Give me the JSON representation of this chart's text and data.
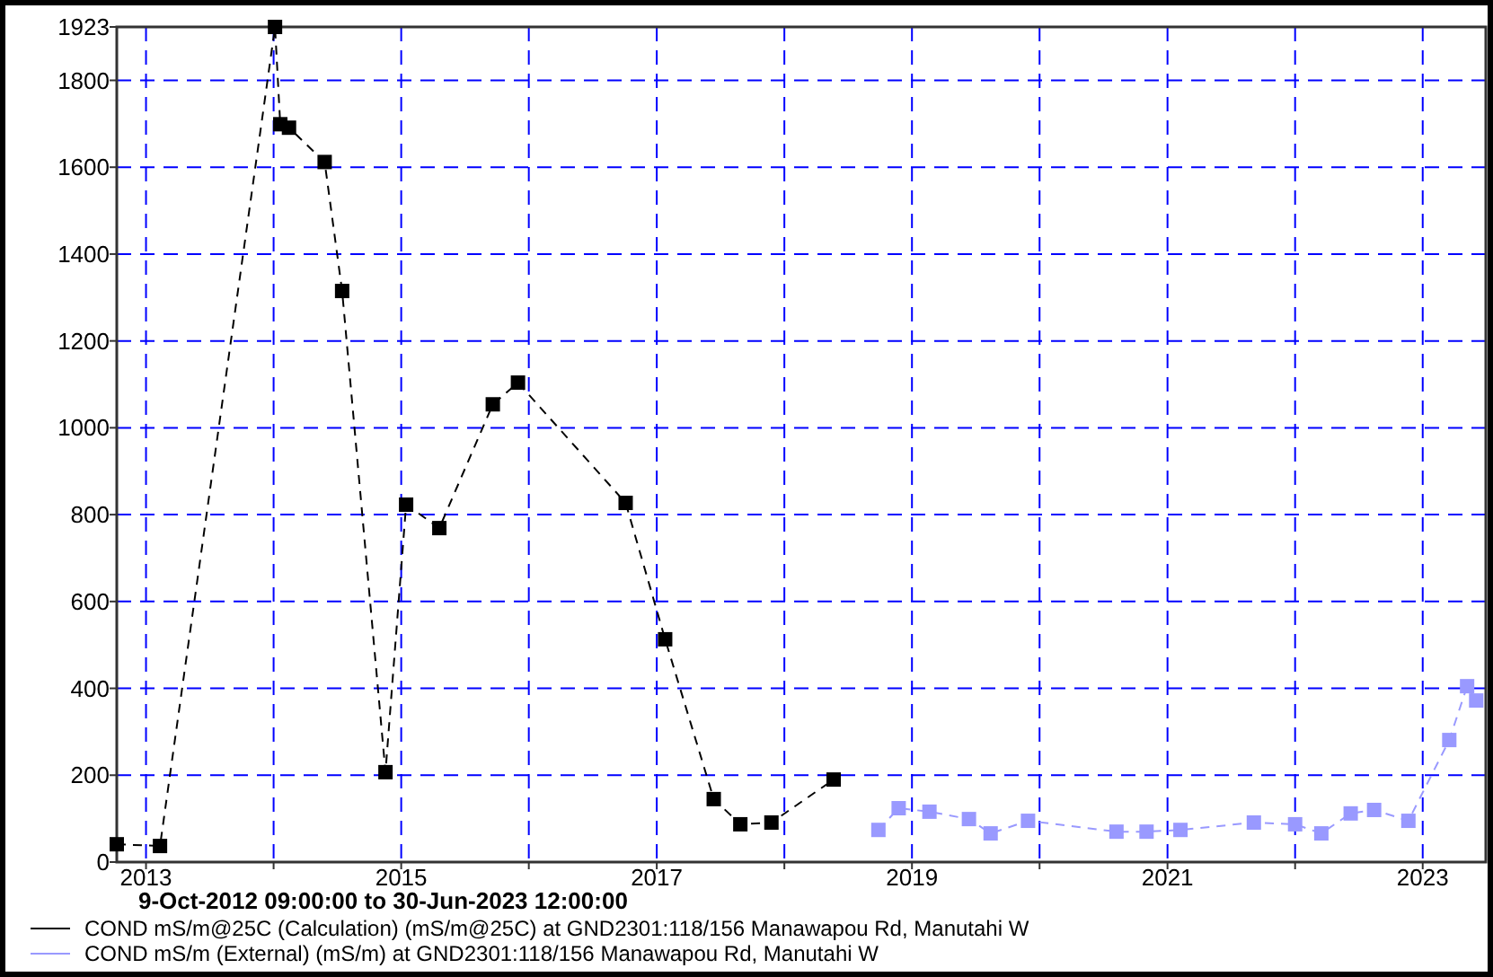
{
  "chart_data": {
    "type": "line",
    "xlabel": "9-Oct-2012 09:00:00 to 30-Jun-2023 12:00:00",
    "xlim": [
      "2012-10-09T09:00",
      "2023-06-30T12:00"
    ],
    "xticks": [
      {
        "value": "2013",
        "label": "2013"
      },
      {
        "value": "2014",
        "label": null
      },
      {
        "value": "2015",
        "label": "2015"
      },
      {
        "value": "2016",
        "label": null
      },
      {
        "value": "2017",
        "label": "2017"
      },
      {
        "value": "2018",
        "label": null
      },
      {
        "value": "2019",
        "label": "2019"
      },
      {
        "value": "2020",
        "label": null
      },
      {
        "value": "2021",
        "label": "2021"
      },
      {
        "value": "2022",
        "label": null
      },
      {
        "value": "2023",
        "label": "2023"
      }
    ],
    "ylim": [
      0,
      1923
    ],
    "yticks": [
      0,
      200,
      400,
      600,
      800,
      1000,
      1200,
      1400,
      1600,
      1800,
      1923
    ],
    "grid": true,
    "legend": "bottom",
    "marker": "square",
    "line_style": "dashed",
    "series": [
      {
        "name": "COND mS/m@25C (Calculation) (mS/m@25C) at GND2301:118/156 Manawapou Rd, Manutahi W",
        "color": "#000000",
        "x": [
          "2012-10-09T09:00",
          "2013-02-10",
          "2014-01-05",
          "2014-01-20",
          "2014-02-14",
          "2014-05-27",
          "2014-07-16",
          "2014-11-17",
          "2015-01-15",
          "2015-04-20",
          "2015-09-20",
          "2015-12-01",
          "2016-10-04",
          "2017-01-25",
          "2017-06-13",
          "2017-08-28",
          "2017-11-25",
          "2018-05-22"
        ],
        "values": [
          41,
          37,
          1923,
          1699,
          1691,
          1612,
          1315,
          207,
          823,
          769,
          1054,
          1104,
          827,
          513,
          145,
          87,
          91,
          190
        ]
      },
      {
        "name": "COND mS/m (External) (mS/m) at GND2301:118/156 Manawapou Rd, Manutahi W",
        "color": "#9999ff",
        "x": [
          "2018-09-27",
          "2018-11-24",
          "2019-02-20",
          "2019-06-13",
          "2019-08-14",
          "2019-11-29",
          "2020-08-08",
          "2020-11-02",
          "2021-02-07",
          "2021-09-05",
          "2022-01-01",
          "2022-03-17",
          "2022-06-09",
          "2022-08-15",
          "2022-11-21",
          "2023-03-18",
          "2023-05-08",
          "2023-06-03"
        ],
        "values": [
          74,
          124,
          116,
          99,
          66,
          95,
          70,
          70,
          74,
          91,
          87,
          66,
          112,
          120,
          95,
          281,
          405,
          372
        ]
      }
    ]
  }
}
